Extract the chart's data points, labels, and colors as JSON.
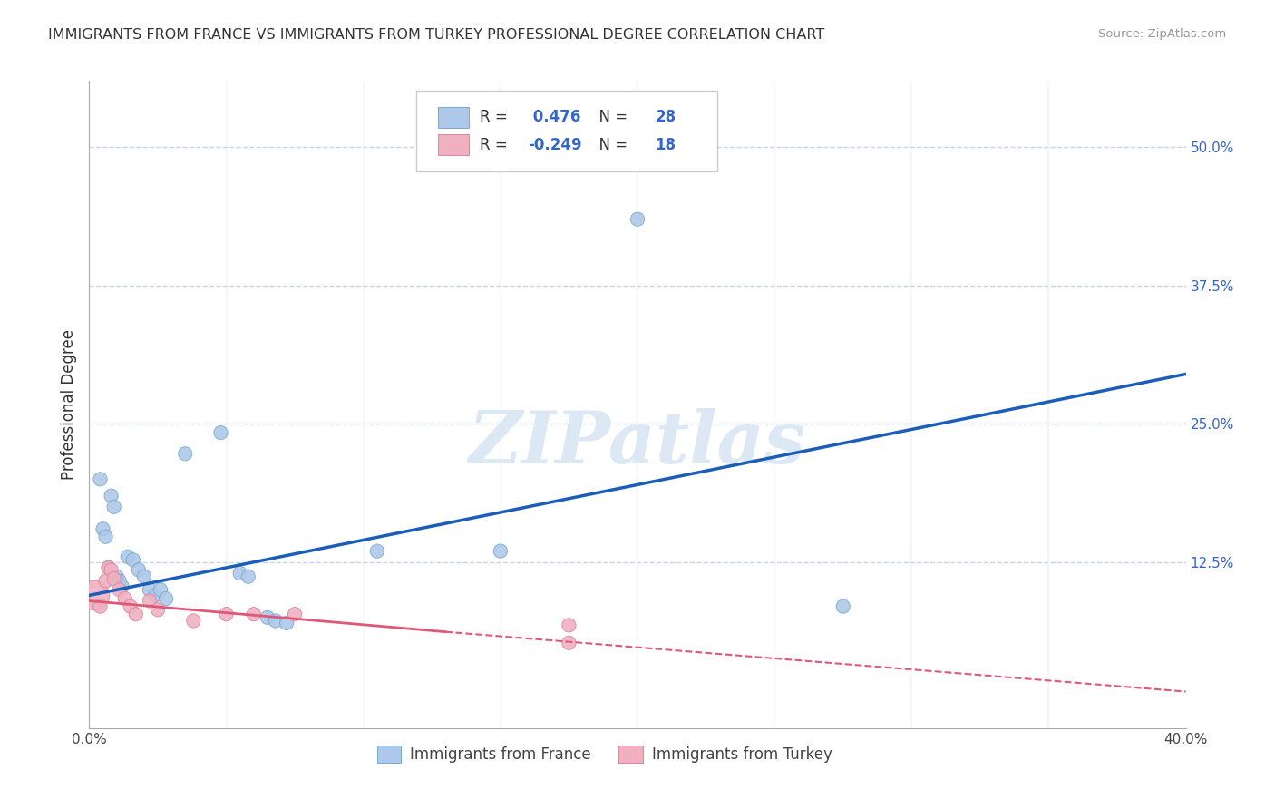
{
  "title": "IMMIGRANTS FROM FRANCE VS IMMIGRANTS FROM TURKEY PROFESSIONAL DEGREE CORRELATION CHART",
  "source": "Source: ZipAtlas.com",
  "ylabel": "Professional Degree",
  "yticks": [
    "50.0%",
    "37.5%",
    "25.0%",
    "12.5%"
  ],
  "ytick_vals": [
    0.5,
    0.375,
    0.25,
    0.125
  ],
  "xlim": [
    0.0,
    0.4
  ],
  "ylim": [
    -0.025,
    0.56
  ],
  "france_R": 0.476,
  "france_N": 28,
  "turkey_R": -0.249,
  "turkey_N": 18,
  "france_color": "#adc8e8",
  "turkey_color": "#f0b0c0",
  "france_line_color": "#1a5eb8",
  "turkey_line_color": "#e05878",
  "background_color": "#ffffff",
  "grid_color": "#c8d4e8",
  "watermark_color": "#dce8f4",
  "france_scatter": [
    [
      0.004,
      0.2
    ],
    [
      0.008,
      0.185
    ],
    [
      0.009,
      0.175
    ],
    [
      0.005,
      0.155
    ],
    [
      0.006,
      0.148
    ],
    [
      0.007,
      0.12
    ],
    [
      0.01,
      0.112
    ],
    [
      0.011,
      0.108
    ],
    [
      0.012,
      0.103
    ],
    [
      0.014,
      0.13
    ],
    [
      0.016,
      0.127
    ],
    [
      0.018,
      0.118
    ],
    [
      0.02,
      0.112
    ],
    [
      0.022,
      0.1
    ],
    [
      0.024,
      0.095
    ],
    [
      0.026,
      0.1
    ],
    [
      0.028,
      0.092
    ],
    [
      0.035,
      0.223
    ],
    [
      0.048,
      0.242
    ],
    [
      0.055,
      0.115
    ],
    [
      0.058,
      0.112
    ],
    [
      0.065,
      0.075
    ],
    [
      0.068,
      0.072
    ],
    [
      0.072,
      0.07
    ],
    [
      0.105,
      0.135
    ],
    [
      0.15,
      0.135
    ],
    [
      0.2,
      0.435
    ],
    [
      0.275,
      0.085
    ]
  ],
  "turkey_scatter": [
    [
      0.002,
      0.095
    ],
    [
      0.004,
      0.085
    ],
    [
      0.006,
      0.108
    ],
    [
      0.007,
      0.12
    ],
    [
      0.008,
      0.118
    ],
    [
      0.009,
      0.11
    ],
    [
      0.011,
      0.1
    ],
    [
      0.013,
      0.092
    ],
    [
      0.015,
      0.085
    ],
    [
      0.017,
      0.078
    ],
    [
      0.022,
      0.09
    ],
    [
      0.025,
      0.082
    ],
    [
      0.038,
      0.072
    ],
    [
      0.05,
      0.078
    ],
    [
      0.06,
      0.078
    ],
    [
      0.075,
      0.078
    ],
    [
      0.175,
      0.052
    ],
    [
      0.175,
      0.068
    ]
  ],
  "france_sizes": [
    120,
    120,
    120,
    120,
    120,
    120,
    120,
    120,
    120,
    120,
    120,
    120,
    120,
    120,
    120,
    120,
    120,
    120,
    120,
    120,
    120,
    120,
    120,
    120,
    120,
    120,
    120,
    120
  ],
  "turkey_sizes": [
    550,
    120,
    120,
    120,
    120,
    120,
    120,
    120,
    120,
    120,
    120,
    120,
    120,
    120,
    120,
    120,
    120,
    120
  ],
  "france_line_pts": [
    [
      0.0,
      0.095
    ],
    [
      0.4,
      0.295
    ]
  ],
  "turkey_line_solid_pts": [
    [
      0.0,
      0.09
    ],
    [
      0.13,
      0.062
    ]
  ],
  "turkey_line_dash_pts": [
    [
      0.13,
      0.062
    ],
    [
      0.4,
      0.008
    ]
  ]
}
